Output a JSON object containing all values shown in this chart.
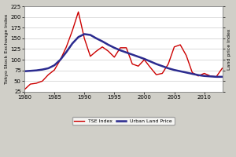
{
  "ylabel_left": "Tokyo Stock Exchange Index",
  "ylabel_right": "Land price Index",
  "xlim": [
    1980,
    2013
  ],
  "ylim": [
    25,
    225
  ],
  "yticks": [
    25,
    50,
    75,
    100,
    125,
    150,
    175,
    200,
    225
  ],
  "xticks": [
    1980,
    1985,
    1990,
    1995,
    2000,
    2005,
    2010
  ],
  "tse_color": "#cc0000",
  "land_color": "#2b2b8f",
  "background_color": "#d0cfc8",
  "plot_background": "#ffffff",
  "tse_data": [
    [
      1980,
      30
    ],
    [
      1981,
      43
    ],
    [
      1982,
      45
    ],
    [
      1983,
      50
    ],
    [
      1984,
      65
    ],
    [
      1985,
      76
    ],
    [
      1986,
      100
    ],
    [
      1987,
      130
    ],
    [
      1988,
      168
    ],
    [
      1989,
      212
    ],
    [
      1990,
      150
    ],
    [
      1991,
      108
    ],
    [
      1992,
      120
    ],
    [
      1993,
      130
    ],
    [
      1994,
      120
    ],
    [
      1995,
      106
    ],
    [
      1996,
      128
    ],
    [
      1997,
      128
    ],
    [
      1998,
      90
    ],
    [
      1999,
      85
    ],
    [
      2000,
      100
    ],
    [
      2001,
      82
    ],
    [
      2002,
      65
    ],
    [
      2003,
      68
    ],
    [
      2004,
      90
    ],
    [
      2005,
      130
    ],
    [
      2006,
      135
    ],
    [
      2007,
      110
    ],
    [
      2008,
      70
    ],
    [
      2009,
      62
    ],
    [
      2010,
      68
    ],
    [
      2011,
      62
    ],
    [
      2012,
      60
    ],
    [
      2013,
      80
    ]
  ],
  "land_data": [
    [
      1980,
      73
    ],
    [
      1981,
      74
    ],
    [
      1982,
      75
    ],
    [
      1983,
      77
    ],
    [
      1984,
      80
    ],
    [
      1985,
      87
    ],
    [
      1986,
      100
    ],
    [
      1987,
      118
    ],
    [
      1988,
      138
    ],
    [
      1989,
      153
    ],
    [
      1990,
      160
    ],
    [
      1991,
      158
    ],
    [
      1992,
      150
    ],
    [
      1993,
      143
    ],
    [
      1994,
      135
    ],
    [
      1995,
      128
    ],
    [
      1996,
      122
    ],
    [
      1997,
      117
    ],
    [
      1998,
      112
    ],
    [
      1999,
      107
    ],
    [
      2000,
      102
    ],
    [
      2001,
      96
    ],
    [
      2002,
      90
    ],
    [
      2003,
      85
    ],
    [
      2004,
      80
    ],
    [
      2005,
      76
    ],
    [
      2006,
      73
    ],
    [
      2007,
      70
    ],
    [
      2008,
      67
    ],
    [
      2009,
      64
    ],
    [
      2010,
      62
    ],
    [
      2011,
      61
    ],
    [
      2012,
      60
    ],
    [
      2013,
      60
    ]
  ],
  "legend_labels": [
    "TSE Index",
    "Urban Land Price"
  ],
  "legend_colors": [
    "#cc0000",
    "#2b2b8f"
  ]
}
